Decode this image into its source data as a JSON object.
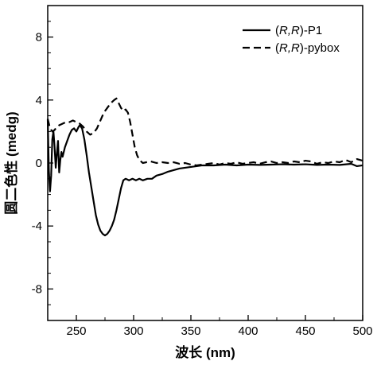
{
  "chart_data": {
    "type": "line",
    "title": "",
    "xlabel": "波长 (nm)",
    "ylabel": "圆二色性 (medg)",
    "xlim": [
      225,
      500
    ],
    "ylim": [
      -10,
      10
    ],
    "xticks": [
      250,
      300,
      350,
      400,
      450,
      500
    ],
    "xtick_labels": [
      "250",
      "300",
      "350",
      "400",
      "450",
      "500"
    ],
    "yticks": [
      -8,
      -4,
      0,
      4,
      8
    ],
    "ytick_labels": [
      "-8",
      "-4",
      "0",
      "4",
      "8"
    ],
    "grid": false,
    "legend_position": "top-right",
    "legend": {
      "entries": [
        {
          "prefix": "(",
          "italic": "R,R",
          "suffix": ")-P1"
        },
        {
          "prefix": "(",
          "italic": "R,R",
          "suffix": ")-pybox"
        }
      ]
    },
    "series": [
      {
        "name": "(R,R)-P1",
        "style": "solid",
        "color": "#000000",
        "points": [
          [
            225,
            2.8
          ],
          [
            226,
            -0.5
          ],
          [
            227,
            -1.8
          ],
          [
            228,
            -0.8
          ],
          [
            229,
            1.5
          ],
          [
            230,
            2.0
          ],
          [
            231,
            1.0
          ],
          [
            232,
            -0.3
          ],
          [
            233,
            0.6
          ],
          [
            234,
            1.4
          ],
          [
            235,
            -0.6
          ],
          [
            236,
            0.2
          ],
          [
            237,
            0.7
          ],
          [
            238,
            0.4
          ],
          [
            240,
            1.0
          ],
          [
            242,
            1.4
          ],
          [
            244,
            1.8
          ],
          [
            246,
            2.1
          ],
          [
            248,
            2.2
          ],
          [
            250,
            2.0
          ],
          [
            252,
            2.3
          ],
          [
            253,
            2.4
          ],
          [
            255,
            2.2
          ],
          [
            257,
            1.5
          ],
          [
            259,
            0.5
          ],
          [
            261,
            -0.6
          ],
          [
            263,
            -1.5
          ],
          [
            265,
            -2.4
          ],
          [
            267,
            -3.3
          ],
          [
            269,
            -3.9
          ],
          [
            271,
            -4.3
          ],
          [
            273,
            -4.5
          ],
          [
            275,
            -4.6
          ],
          [
            277,
            -4.5
          ],
          [
            279,
            -4.3
          ],
          [
            281,
            -4.0
          ],
          [
            283,
            -3.6
          ],
          [
            285,
            -3.0
          ],
          [
            287,
            -2.3
          ],
          [
            289,
            -1.6
          ],
          [
            291,
            -1.1
          ],
          [
            293,
            -1.0
          ],
          [
            296,
            -1.1
          ],
          [
            299,
            -1.0
          ],
          [
            302,
            -1.1
          ],
          [
            305,
            -1.0
          ],
          [
            308,
            -1.1
          ],
          [
            312,
            -1.0
          ],
          [
            316,
            -1.0
          ],
          [
            320,
            -0.8
          ],
          [
            325,
            -0.7
          ],
          [
            330,
            -0.55
          ],
          [
            335,
            -0.45
          ],
          [
            340,
            -0.35
          ],
          [
            345,
            -0.3
          ],
          [
            350,
            -0.25
          ],
          [
            355,
            -0.2
          ],
          [
            360,
            -0.15
          ],
          [
            370,
            -0.15
          ],
          [
            380,
            -0.1
          ],
          [
            390,
            -0.15
          ],
          [
            400,
            -0.1
          ],
          [
            410,
            -0.12
          ],
          [
            420,
            -0.1
          ],
          [
            430,
            -0.08
          ],
          [
            440,
            -0.1
          ],
          [
            450,
            -0.08
          ],
          [
            460,
            -0.12
          ],
          [
            470,
            -0.1
          ],
          [
            480,
            -0.12
          ],
          [
            490,
            -0.05
          ],
          [
            495,
            -0.2
          ],
          [
            500,
            -0.15
          ]
        ]
      },
      {
        "name": "(R,R)-pybox",
        "style": "dashed",
        "color": "#000000",
        "points": [
          [
            225,
            2.8
          ],
          [
            227,
            2.2
          ],
          [
            229,
            2.0
          ],
          [
            231,
            2.1
          ],
          [
            233,
            2.3
          ],
          [
            235,
            2.4
          ],
          [
            238,
            2.5
          ],
          [
            241,
            2.6
          ],
          [
            244,
            2.6
          ],
          [
            247,
            2.7
          ],
          [
            250,
            2.6
          ],
          [
            253,
            2.5
          ],
          [
            256,
            2.3
          ],
          [
            259,
            2.0
          ],
          [
            262,
            1.8
          ],
          [
            265,
            1.9
          ],
          [
            268,
            2.2
          ],
          [
            271,
            2.7
          ],
          [
            274,
            3.2
          ],
          [
            277,
            3.5
          ],
          [
            280,
            3.8
          ],
          [
            283,
            4.0
          ],
          [
            285,
            4.1
          ],
          [
            287,
            3.8
          ],
          [
            289,
            3.5
          ],
          [
            291,
            3.3
          ],
          [
            293,
            3.4
          ],
          [
            295,
            3.2
          ],
          [
            297,
            2.6
          ],
          [
            299,
            1.8
          ],
          [
            301,
            1.0
          ],
          [
            303,
            0.5
          ],
          [
            305,
            0.2
          ],
          [
            308,
            0.0
          ],
          [
            311,
            0.05
          ],
          [
            315,
            0.1
          ],
          [
            320,
            0.0
          ],
          [
            325,
            0.05
          ],
          [
            330,
            0.0
          ],
          [
            335,
            0.05
          ],
          [
            340,
            -0.05
          ],
          [
            345,
            0.0
          ],
          [
            350,
            -0.1
          ],
          [
            355,
            -0.15
          ],
          [
            360,
            -0.1
          ],
          [
            365,
            -0.05
          ],
          [
            370,
            0.0
          ],
          [
            375,
            -0.1
          ],
          [
            380,
            0.0
          ],
          [
            385,
            -0.05
          ],
          [
            390,
            0.05
          ],
          [
            395,
            -0.05
          ],
          [
            400,
            0.0
          ],
          [
            405,
            0.05
          ],
          [
            410,
            -0.05
          ],
          [
            415,
            0.05
          ],
          [
            420,
            0.1
          ],
          [
            425,
            0.0
          ],
          [
            430,
            0.05
          ],
          [
            435,
            0.0
          ],
          [
            440,
            0.1
          ],
          [
            445,
            0.05
          ],
          [
            450,
            0.15
          ],
          [
            455,
            0.1
          ],
          [
            460,
            -0.05
          ],
          [
            465,
            0.05
          ],
          [
            470,
            0.0
          ],
          [
            475,
            0.1
          ],
          [
            480,
            0.05
          ],
          [
            485,
            0.2
          ],
          [
            490,
            0.05
          ],
          [
            495,
            0.25
          ],
          [
            500,
            0.15
          ]
        ]
      }
    ]
  }
}
